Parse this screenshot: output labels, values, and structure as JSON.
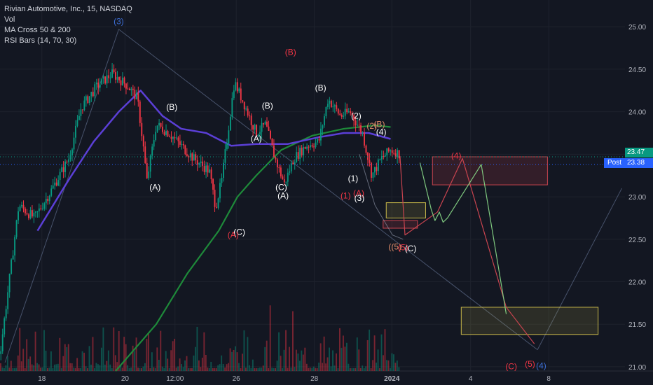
{
  "legend": {
    "title": "Rivian Automotive, Inc., 15, NASDAQ",
    "vol": "Vol",
    "ma": "MA Cross 50 & 200",
    "rsi": "RSI Bars (14, 70, 30)"
  },
  "post_label": "Post",
  "last_price_label": "23.47",
  "post_price_label": "23.38",
  "colors": {
    "background": "#131722",
    "up": "#089981",
    "down": "#f23645",
    "ma50": "#5b3fd6",
    "ma200": "#1e8a3a",
    "wave_white": "#ffffff",
    "wave_red": "#f23645",
    "wave_blue": "#3d6fd6",
    "wave_orange": "#e58f6b",
    "projection_green": "#7fc97f",
    "projection_red": "#c9444f",
    "box_yellow": "#c9b94a",
    "box_red": "#c9444f"
  },
  "chart_data": {
    "type": "candlestick",
    "title": "Rivian Automotive, Inc., 15, NASDAQ",
    "y_axis": {
      "ticks": [
        "25.00",
        "24.50",
        "24.00",
        "23.50",
        "23.00",
        "22.50",
        "22.00",
        "21.50",
        "21.00"
      ],
      "ylim": [
        20.95,
        25.15
      ]
    },
    "x_axis": {
      "ticks": [
        "18",
        "20",
        "12:00",
        "26",
        "28",
        "2024",
        "4",
        "8"
      ],
      "bold_tick": "2024"
    },
    "price_path": [
      [
        0,
        21.15
      ],
      [
        0.03,
        22.9
      ],
      [
        0.055,
        22.75
      ],
      [
        0.08,
        23.05
      ],
      [
        0.11,
        23.45
      ],
      [
        0.13,
        24.05
      ],
      [
        0.155,
        24.3
      ],
      [
        0.18,
        24.45
      ],
      [
        0.205,
        24.3
      ],
      [
        0.22,
        24.15
      ],
      [
        0.23,
        23.55
      ],
      [
        0.235,
        23.18
      ],
      [
        0.25,
        23.85
      ],
      [
        0.27,
        23.75
      ],
      [
        0.29,
        23.6
      ],
      [
        0.31,
        23.45
      ],
      [
        0.335,
        23.3
      ],
      [
        0.345,
        22.88
      ],
      [
        0.355,
        23.2
      ],
      [
        0.375,
        24.35
      ],
      [
        0.39,
        24.1
      ],
      [
        0.41,
        23.75
      ],
      [
        0.425,
        23.85
      ],
      [
        0.44,
        23.45
      ],
      [
        0.455,
        23.15
      ],
      [
        0.47,
        23.45
      ],
      [
        0.49,
        23.6
      ],
      [
        0.51,
        23.65
      ],
      [
        0.525,
        24.15
      ],
      [
        0.545,
        23.95
      ],
      [
        0.56,
        24.0
      ],
      [
        0.58,
        23.75
      ],
      [
        0.595,
        23.25
      ],
      [
        0.61,
        23.45
      ],
      [
        0.625,
        23.55
      ],
      [
        0.64,
        23.5
      ]
    ],
    "ma50_path": [
      [
        0.06,
        22.6
      ],
      [
        0.11,
        23.2
      ],
      [
        0.15,
        23.65
      ],
      [
        0.19,
        24.0
      ],
      [
        0.225,
        24.25
      ],
      [
        0.26,
        23.95
      ],
      [
        0.29,
        23.8
      ],
      [
        0.33,
        23.75
      ],
      [
        0.37,
        23.6
      ],
      [
        0.41,
        23.62
      ],
      [
        0.46,
        23.62
      ],
      [
        0.51,
        23.7
      ],
      [
        0.55,
        23.75
      ],
      [
        0.59,
        23.75
      ],
      [
        0.625,
        23.68
      ]
    ],
    "ma200_path": [
      [
        0.185,
        20.95
      ],
      [
        0.25,
        21.5
      ],
      [
        0.3,
        22.1
      ],
      [
        0.35,
        22.6
      ],
      [
        0.38,
        23.0
      ],
      [
        0.41,
        23.25
      ],
      [
        0.45,
        23.55
      ],
      [
        0.5,
        23.72
      ],
      [
        0.55,
        23.8
      ],
      [
        0.6,
        23.84
      ],
      [
        0.625,
        23.82
      ]
    ],
    "wave_labels": [
      {
        "text": "(3)",
        "t": 0.19,
        "p": 25.03,
        "color": "blue"
      },
      {
        "text": "(A)",
        "t": 0.248,
        "p": 23.08,
        "color": "white"
      },
      {
        "text": "(B)",
        "t": 0.275,
        "p": 24.02,
        "color": "white"
      },
      {
        "text": "(C)",
        "t": 0.383,
        "p": 22.55,
        "color": "white"
      },
      {
        "text": "(A)",
        "t": 0.373,
        "p": 22.52,
        "color": "red"
      },
      {
        "text": "(B)",
        "t": 0.465,
        "p": 24.67,
        "color": "red"
      },
      {
        "text": "(A)",
        "t": 0.41,
        "p": 23.65,
        "color": "white"
      },
      {
        "text": "(B)",
        "t": 0.428,
        "p": 24.04,
        "color": "white"
      },
      {
        "text": "(C)",
        "t": 0.45,
        "p": 23.08,
        "color": "white"
      },
      {
        "text": "(A)",
        "t": 0.453,
        "p": 22.98,
        "color": "white"
      },
      {
        "text": "(B)",
        "t": 0.513,
        "p": 24.25,
        "color": "white"
      },
      {
        "text": "(2)",
        "t": 0.57,
        "p": 23.92,
        "color": "white"
      },
      {
        "text": "(2)",
        "t": 0.595,
        "p": 23.8,
        "color": "orange"
      },
      {
        "text": "(B)",
        "t": 0.607,
        "p": 23.82,
        "color": "orange"
      },
      {
        "text": "(4)",
        "t": 0.61,
        "p": 23.73,
        "color": "white"
      },
      {
        "text": "(1)",
        "t": 0.565,
        "p": 23.18,
        "color": "white"
      },
      {
        "text": "(1)",
        "t": 0.553,
        "p": 22.98,
        "color": "red"
      },
      {
        "text": "(A)",
        "t": 0.574,
        "p": 23.01,
        "color": "red"
      },
      {
        "text": "(3)",
        "t": 0.575,
        "p": 22.95,
        "color": "white"
      },
      {
        "text": "((5)",
        "t": 0.632,
        "p": 22.38,
        "color": "orange"
      },
      {
        "text": "(5)",
        "t": 0.645,
        "p": 22.37,
        "color": "red"
      },
      {
        "text": "(C)",
        "t": 0.657,
        "p": 22.36,
        "color": "white"
      },
      {
        "text": "(4)",
        "t": 0.73,
        "p": 23.45,
        "color": "red"
      },
      {
        "text": "(C)",
        "t": 0.818,
        "p": 20.97,
        "color": "red"
      },
      {
        "text": "(5)",
        "t": 0.848,
        "p": 21.0,
        "color": "red"
      },
      {
        "text": "(4)",
        "t": 0.866,
        "p": 20.98,
        "color": "blue"
      }
    ],
    "boxes": [
      {
        "t0": 0.692,
        "t1": 0.876,
        "p0": 23.14,
        "p1": 23.47,
        "border": "red"
      },
      {
        "t0": 0.618,
        "t1": 0.681,
        "p0": 22.75,
        "p1": 22.93,
        "border": "yellow"
      },
      {
        "t0": 0.613,
        "t1": 0.668,
        "p0": 22.63,
        "p1": 22.72,
        "border": "red"
      },
      {
        "t0": 0.738,
        "t1": 0.957,
        "p0": 21.38,
        "p1": 21.7,
        "border": "yellow"
      }
    ],
    "projection_green": [
      [
        0.672,
        23.4
      ],
      [
        0.69,
        22.85
      ],
      [
        0.696,
        22.72
      ],
      [
        0.703,
        22.82
      ],
      [
        0.709,
        22.7
      ],
      [
        0.716,
        22.75
      ],
      [
        0.77,
        23.38
      ],
      [
        0.81,
        21.62
      ]
    ],
    "projection_red": [
      [
        0.64,
        23.48
      ],
      [
        0.648,
        22.55
      ],
      [
        0.7,
        22.82
      ],
      [
        0.74,
        23.45
      ],
      [
        0.81,
        21.7
      ],
      [
        0.855,
        21.27
      ]
    ],
    "trend_line": [
      [
        0.19,
        24.97
      ],
      [
        0.86,
        21.2
      ]
    ],
    "post_price": 23.38,
    "last_price": 23.47
  }
}
